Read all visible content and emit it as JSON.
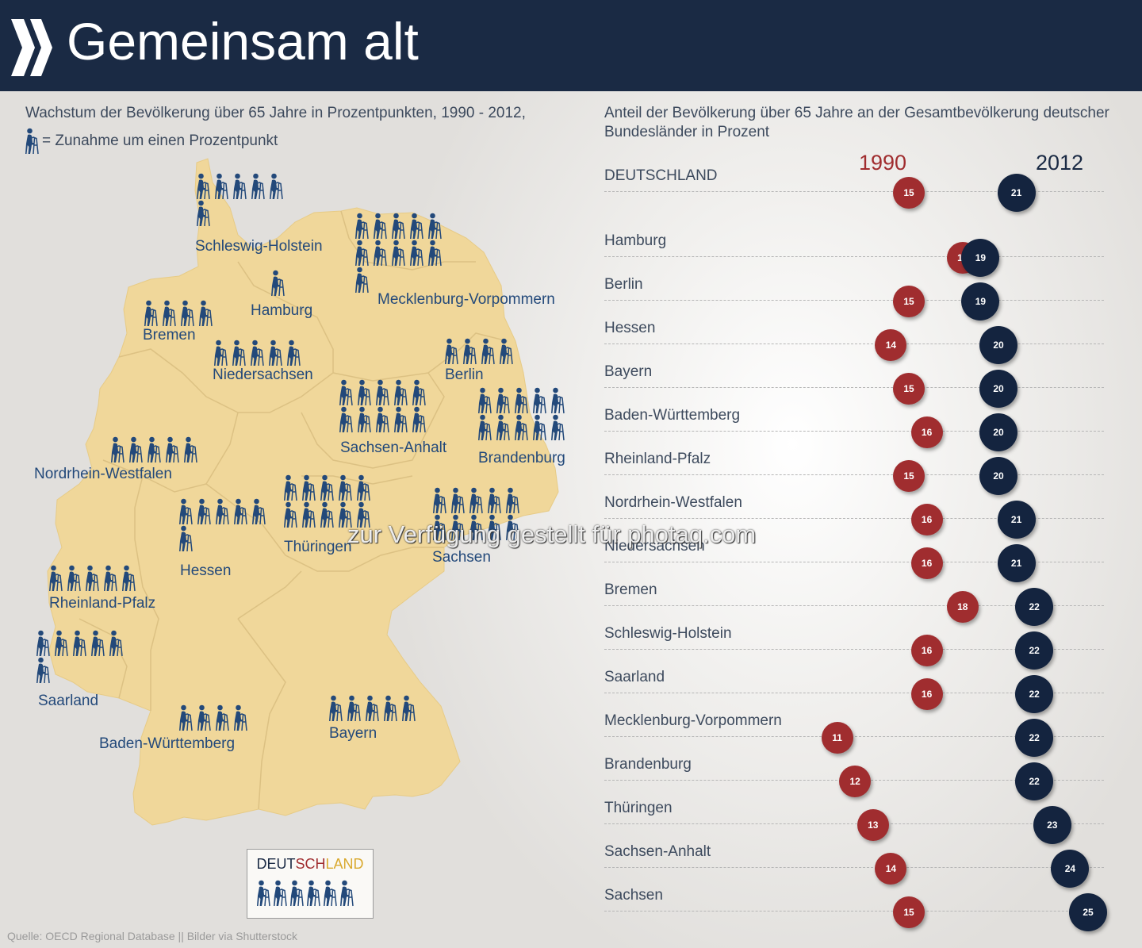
{
  "header": {
    "title": "Gemeinsam alt"
  },
  "left": {
    "subtitle": "Wachstum der Bevölkerung über 65 Jahre in Prozentpunkten, 1990 - 2012,",
    "legend_text": "= Zunahme um einen Prozentpunkt"
  },
  "right": {
    "subtitle": "Anteil der Bevölkerung über 65 Jahre an der Gesamtbevölkerung deutscher Bundesländer in Prozent",
    "year_1990": "1990",
    "year_2012": "2012"
  },
  "colors": {
    "header": "#1a2a44",
    "red": "#a02d2f",
    "navy": "#14243f",
    "map": "#f0d79a",
    "label": "#23497a"
  },
  "map_states": [
    {
      "name": "Schleswig-Holstein",
      "growth": 6
    },
    {
      "name": "Mecklenburg-Vorpommern",
      "growth": 11
    },
    {
      "name": "Hamburg",
      "growth": 1
    },
    {
      "name": "Bremen",
      "growth": 4
    },
    {
      "name": "Niedersachsen",
      "growth": 5
    },
    {
      "name": "Berlin",
      "growth": 4
    },
    {
      "name": "Sachsen-Anhalt",
      "growth": 10
    },
    {
      "name": "Brandenburg",
      "growth": 10
    },
    {
      "name": "Nordrhein-Westfalen",
      "growth": 5
    },
    {
      "name": "Hessen",
      "growth": 6
    },
    {
      "name": "Thüringen",
      "growth": 10
    },
    {
      "name": "Sachsen",
      "growth": 10
    },
    {
      "name": "Rheinland-Pfalz",
      "growth": 5
    },
    {
      "name": "Saarland",
      "growth": 6
    },
    {
      "name": "Baden-Württemberg",
      "growth": 4
    },
    {
      "name": "Bayern",
      "growth": 5
    }
  ],
  "germany_box": {
    "part1": "DEUT",
    "part2": "SCH",
    "part3": "LAND",
    "growth": 6
  },
  "chart_data": {
    "type": "dot",
    "series": [
      {
        "name": "1990"
      },
      {
        "name": "2012"
      }
    ],
    "rows": [
      {
        "label": "DEUTSCHLAND",
        "v1990": 15,
        "v2012": 21
      },
      {
        "label": "Hamburg",
        "v1990": 18,
        "v2012": 19
      },
      {
        "label": "Berlin",
        "v1990": 15,
        "v2012": 19
      },
      {
        "label": "Hessen",
        "v1990": 14,
        "v2012": 20
      },
      {
        "label": "Bayern",
        "v1990": 15,
        "v2012": 20
      },
      {
        "label": "Baden-Württemberg",
        "v1990": 16,
        "v2012": 20
      },
      {
        "label": "Rheinland-Pfalz",
        "v1990": 15,
        "v2012": 20
      },
      {
        "label": "Nordrhein-Westfalen",
        "v1990": 16,
        "v2012": 21
      },
      {
        "label": "Niedersachsen",
        "v1990": 16,
        "v2012": 21
      },
      {
        "label": "Bremen",
        "v1990": 18,
        "v2012": 22
      },
      {
        "label": "Schleswig-Holstein",
        "v1990": 16,
        "v2012": 22
      },
      {
        "label": "Saarland",
        "v1990": 16,
        "v2012": 22
      },
      {
        "label": "Mecklenburg-Vorpommern",
        "v1990": 11,
        "v2012": 22
      },
      {
        "label": "Brandenburg",
        "v1990": 12,
        "v2012": 22
      },
      {
        "label": "Thüringen",
        "v1990": 13,
        "v2012": 23
      },
      {
        "label": "Sachsen-Anhalt",
        "v1990": 14,
        "v2012": 24
      },
      {
        "label": "Sachsen",
        "v1990": 15,
        "v2012": 25
      }
    ]
  },
  "watermark": "zur Verfügung gestellt für photaq.com",
  "source": "Quelle: OECD Regional Database || Bilder via Shutterstock"
}
